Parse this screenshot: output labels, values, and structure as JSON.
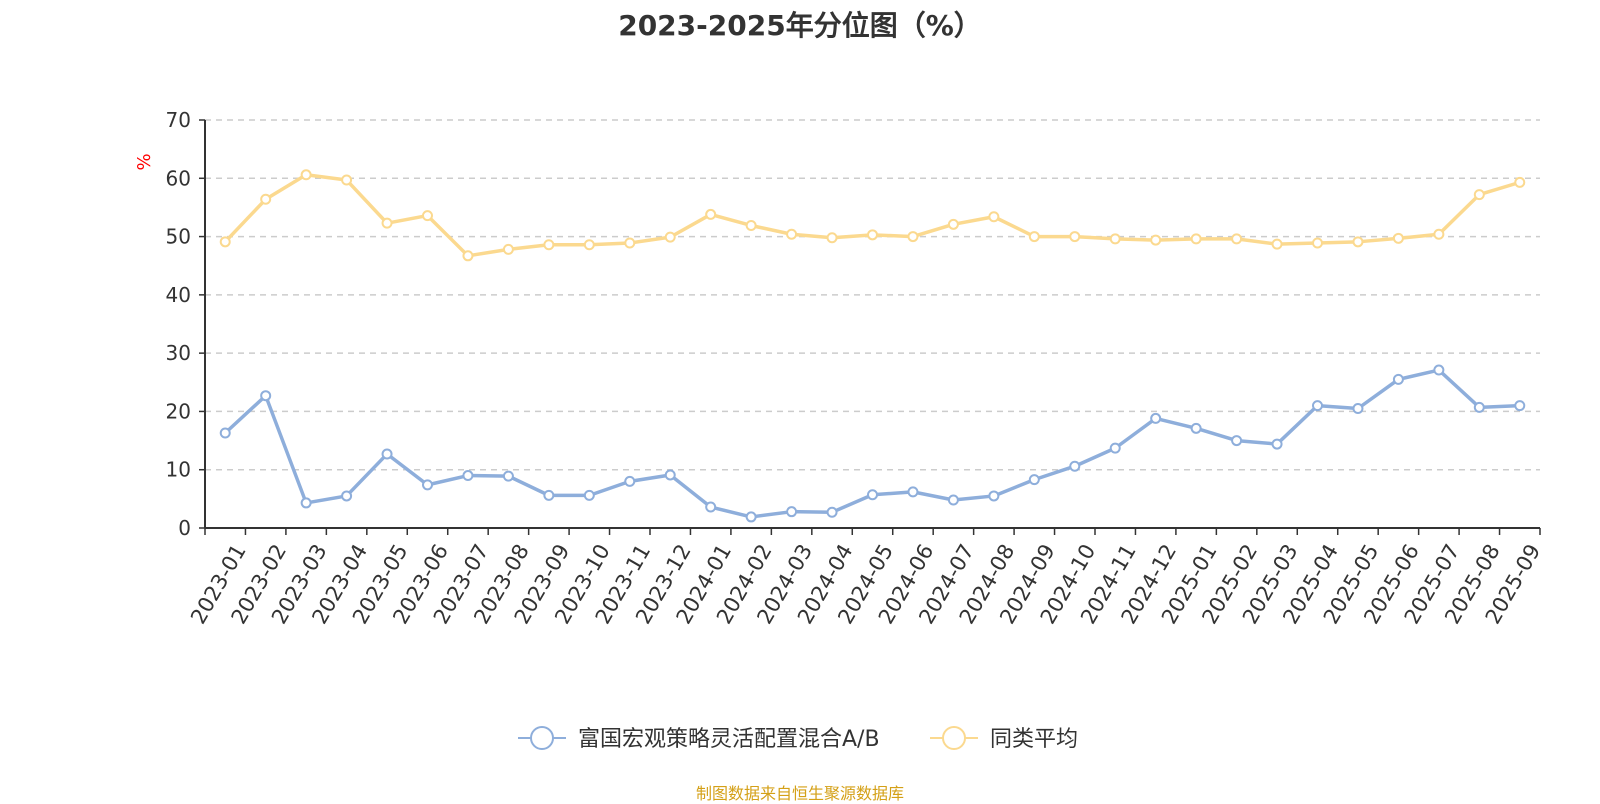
{
  "title": "2023-2025年分位图（%）",
  "source_text": "制图数据来自恒生聚源数据库",
  "colors": {
    "fund": "#8eaedb",
    "peer": "#fbd98f",
    "grid": "#cccccc",
    "axis": "#333333",
    "unit": "#ff0000",
    "source": "#d4a017"
  },
  "chart_data": {
    "type": "line",
    "title": "2023-2025年分位图（%）",
    "ylabel": "%",
    "xlabel": "",
    "ylim": [
      0,
      70
    ],
    "yticks": [
      0,
      10,
      20,
      30,
      40,
      50,
      60,
      70
    ],
    "grid": true,
    "legend_position": "bottom-center",
    "categories": [
      "2023-01",
      "2023-02",
      "2023-03",
      "2023-04",
      "2023-05",
      "2023-06",
      "2023-07",
      "2023-08",
      "2023-09",
      "2023-10",
      "2023-11",
      "2023-12",
      "2024-01",
      "2024-02",
      "2024-03",
      "2024-04",
      "2024-05",
      "2024-06",
      "2024-07",
      "2024-08",
      "2024-09",
      "2024-10",
      "2024-11",
      "2024-12",
      "2025-01",
      "2025-02",
      "2025-03",
      "2025-04",
      "2025-05",
      "2025-06",
      "2025-07",
      "2025-08",
      "2025-09"
    ],
    "series": [
      {
        "name": "富国宏观策略灵活配置混合A/B",
        "color": "#8eaedb",
        "values": [
          16.3,
          22.7,
          4.3,
          5.5,
          12.7,
          7.4,
          9.0,
          8.9,
          5.6,
          5.6,
          8.0,
          9.1,
          3.6,
          1.9,
          2.8,
          2.7,
          5.7,
          6.2,
          4.8,
          5.5,
          8.3,
          10.6,
          13.7,
          18.8,
          17.1,
          15.0,
          14.4,
          21.0,
          20.5,
          25.5,
          27.1,
          20.7,
          21.0
        ]
      },
      {
        "name": "同类平均",
        "color": "#fbd98f",
        "values": [
          49.1,
          56.4,
          60.6,
          59.7,
          52.3,
          53.6,
          46.7,
          47.8,
          48.6,
          48.6,
          48.9,
          49.9,
          53.8,
          51.9,
          50.4,
          49.8,
          50.3,
          50.0,
          52.1,
          53.4,
          50.0,
          50.0,
          49.6,
          49.4,
          49.6,
          49.6,
          48.7,
          48.9,
          49.1,
          49.7,
          50.4,
          57.2,
          59.3
        ]
      }
    ]
  }
}
